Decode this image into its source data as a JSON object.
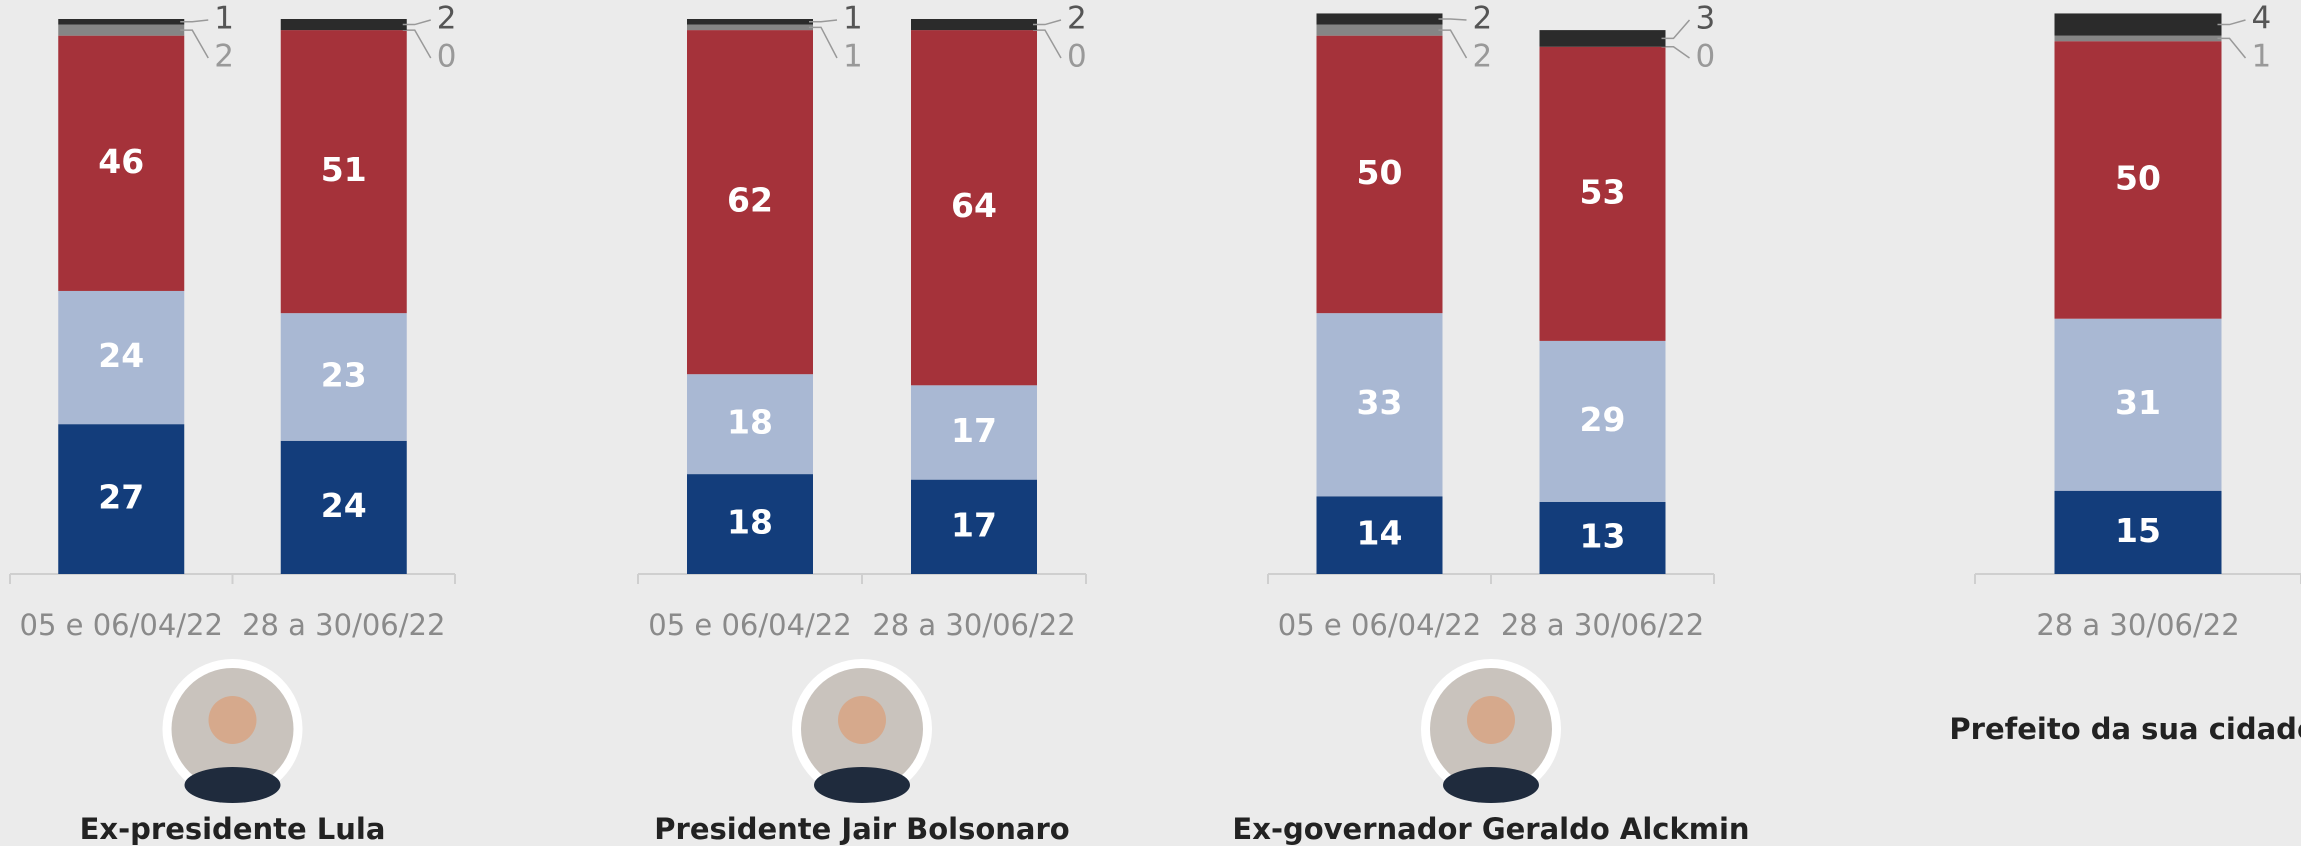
{
  "chart_data": [
    {
      "type": "bar",
      "stacked": true,
      "caption": "Ex-presidente Lula",
      "categories": [
        "05 e 06/04/22",
        "28 a 30/06/22"
      ],
      "ylim": [
        0,
        100
      ],
      "series": [
        {
          "color": "#133d7b",
          "values": [
            27,
            24
          ]
        },
        {
          "color": "#a9b8d3",
          "values": [
            24,
            23
          ]
        },
        {
          "color": "#a5323a",
          "values": [
            46,
            51
          ]
        },
        {
          "color": "#858585",
          "values": [
            2,
            0
          ]
        },
        {
          "color": "#2b2b2b",
          "values": [
            1,
            2
          ]
        }
      ]
    },
    {
      "type": "bar",
      "stacked": true,
      "caption": "Presidente Jair Bolsonaro",
      "categories": [
        "05 e 06/04/22",
        "28 a 30/06/22"
      ],
      "ylim": [
        0,
        100
      ],
      "series": [
        {
          "color": "#133d7b",
          "values": [
            18,
            17
          ]
        },
        {
          "color": "#a9b8d3",
          "values": [
            18,
            17
          ]
        },
        {
          "color": "#a5323a",
          "values": [
            62,
            64
          ]
        },
        {
          "color": "#858585",
          "values": [
            1,
            0
          ]
        },
        {
          "color": "#2b2b2b",
          "values": [
            1,
            2
          ]
        }
      ]
    },
    {
      "type": "bar",
      "stacked": true,
      "caption": "Ex-governador Geraldo Alckmin",
      "categories": [
        "05 e 06/04/22",
        "28 a 30/06/22"
      ],
      "ylim": [
        0,
        100
      ],
      "series": [
        {
          "color": "#133d7b",
          "values": [
            14,
            13
          ]
        },
        {
          "color": "#a9b8d3",
          "values": [
            33,
            29
          ]
        },
        {
          "color": "#a5323a",
          "values": [
            50,
            53
          ]
        },
        {
          "color": "#858585",
          "values": [
            2,
            0
          ]
        },
        {
          "color": "#2b2b2b",
          "values": [
            2,
            3
          ]
        }
      ]
    },
    {
      "type": "bar",
      "stacked": true,
      "caption": "Prefeito da sua cidade",
      "categories": [
        "28 a 30/06/22"
      ],
      "ylim": [
        0,
        100
      ],
      "series": [
        {
          "color": "#133d7b",
          "values": [
            15
          ]
        },
        {
          "color": "#a9b8d3",
          "values": [
            31
          ]
        },
        {
          "color": "#a5323a",
          "values": [
            50
          ]
        },
        {
          "color": "#858585",
          "values": [
            1
          ]
        },
        {
          "color": "#2b2b2b",
          "values": [
            4
          ]
        }
      ]
    }
  ]
}
